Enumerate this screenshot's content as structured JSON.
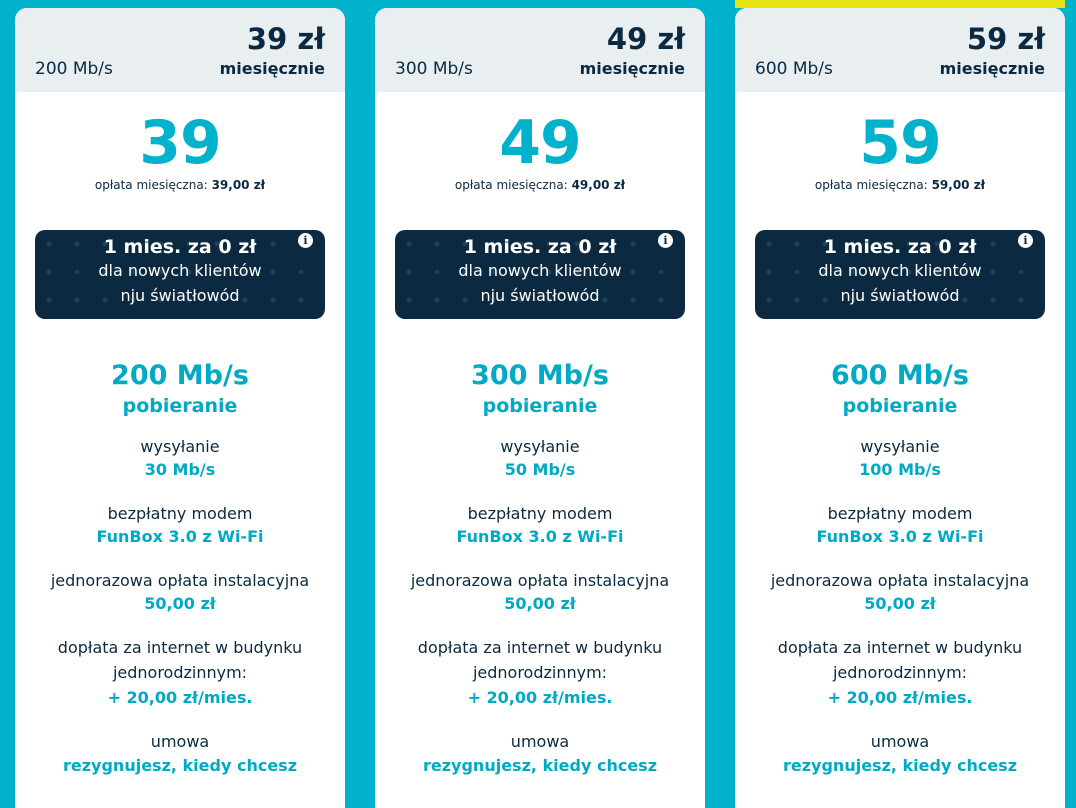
{
  "plans": [
    {
      "header_speed": "200 Mb/s",
      "header_price": "39 zł",
      "header_period": "miesięcznie",
      "big_price": "39",
      "monthly_label": "opłata miesięczna:",
      "monthly_value": "39,00 zł",
      "promo_title": "1 mies. za 0 zł",
      "promo_text": "dla nowych klientów nju światłowód",
      "download": "200 Mb/s",
      "download_label": "pobieranie",
      "upload_label": "wysyłanie",
      "upload": "30 Mb/s",
      "modem_label": "bezpłatny modem",
      "modem": "FunBox 3.0 z Wi-Fi",
      "install_label": "jednorazowa opłata instalacyjna",
      "install": "50,00 zł",
      "surcharge_label": "dopłata za internet w budynku jednorodzinnym:",
      "surcharge": "+ 20,00 zł/mies.",
      "contract_label": "umowa",
      "contract": "rezygnujesz, kiedy chcesz",
      "highlighted": false
    },
    {
      "header_speed": "300 Mb/s",
      "header_price": "49 zł",
      "header_period": "miesięcznie",
      "big_price": "49",
      "monthly_label": "opłata miesięczna:",
      "monthly_value": "49,00 zł",
      "promo_title": "1 mies. za 0 zł",
      "promo_text": "dla nowych klientów nju światłowód",
      "download": "300 Mb/s",
      "download_label": "pobieranie",
      "upload_label": "wysyłanie",
      "upload": "50 Mb/s",
      "modem_label": "bezpłatny modem",
      "modem": "FunBox 3.0 z Wi-Fi",
      "install_label": "jednorazowa opłata instalacyjna",
      "install": "50,00 zł",
      "surcharge_label": "dopłata za internet w budynku jednorodzinnym:",
      "surcharge": "+ 20,00 zł/mies.",
      "contract_label": "umowa",
      "contract": "rezygnujesz, kiedy chcesz",
      "highlighted": false
    },
    {
      "header_speed": "600 Mb/s",
      "header_price": "59 zł",
      "header_period": "miesięcznie",
      "big_price": "59",
      "monthly_label": "opłata miesięczna:",
      "monthly_value": "59,00 zł",
      "promo_title": "1 mies. za 0 zł",
      "promo_text": "dla nowych klientów nju światłowód",
      "download": "600 Mb/s",
      "download_label": "pobieranie",
      "upload_label": "wysyłanie",
      "upload": "100 Mb/s",
      "modem_label": "bezpłatny modem",
      "modem": "FunBox 3.0 z Wi-Fi",
      "install_label": "jednorazowa opłata instalacyjna",
      "install": "50,00 zł",
      "surcharge_label": "dopłata za internet w budynku jednorodzinnym:",
      "surcharge": "+ 20,00 zł/mies.",
      "contract_label": "umowa",
      "contract": "rezygnujesz, kiedy chcesz",
      "highlighted": true
    }
  ],
  "info_icon": "i",
  "colors": {
    "accent": "#00b2cc",
    "dark": "#0b2a42",
    "highlight": "#e8e414",
    "header_bg": "#e9eff0"
  }
}
